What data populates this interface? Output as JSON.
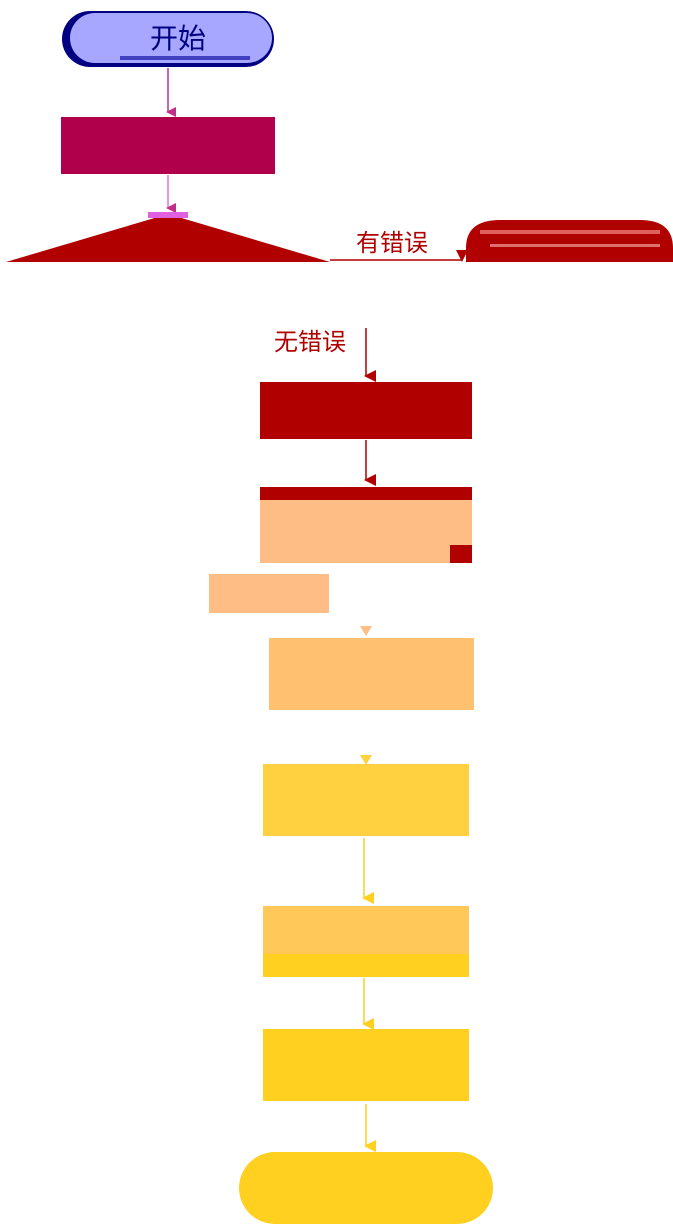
{
  "flow": {
    "start_label": "开始",
    "error_branch_label": "有错误",
    "ok_branch_label": "无错误"
  },
  "colors": {
    "start_fill": "#a7a7ff",
    "start_dark": "#000080",
    "step1": "#b0004c",
    "decision": "#b00000",
    "error_end": "#b00000",
    "step2": "#b00000",
    "step3_top": "#b00000",
    "step3_body": "#ffbd86",
    "side_note": "#ffbd86",
    "step4": "#ffc070",
    "step5": "#ffd040",
    "step6_top": "#ffc858",
    "step6_bottom": "#ffd020",
    "step7": "#ffd020",
    "end_fill": "#ffd020"
  }
}
